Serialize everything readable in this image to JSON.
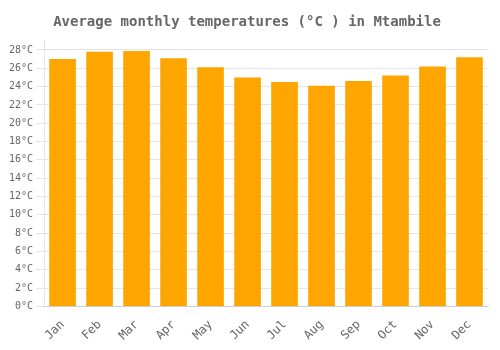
{
  "chart_data": {
    "type": "bar",
    "title": "Average monthly temperatures (°C ) in Mtambile",
    "categories": [
      "Jan",
      "Feb",
      "Mar",
      "Apr",
      "May",
      "Jun",
      "Jul",
      "Aug",
      "Sep",
      "Oct",
      "Nov",
      "Dec"
    ],
    "values": [
      27.0,
      27.8,
      27.9,
      27.1,
      26.1,
      25.0,
      24.5,
      24.1,
      24.6,
      25.2,
      26.2,
      27.2
    ],
    "color": "#FFA500",
    "ylim": [
      0,
      29
    ],
    "yticks": [
      {
        "value": 0,
        "label": "0°C"
      },
      {
        "value": 2,
        "label": "2°C"
      },
      {
        "value": 4,
        "label": "4°C"
      },
      {
        "value": 6,
        "label": "6°C"
      },
      {
        "value": 8,
        "label": "8°C"
      },
      {
        "value": 10,
        "label": "10°C"
      },
      {
        "value": 12,
        "label": "12°C"
      },
      {
        "value": 14,
        "label": "14°C"
      },
      {
        "value": 16,
        "label": "16°C"
      },
      {
        "value": 18,
        "label": "18°C"
      },
      {
        "value": 20,
        "label": "20°C"
      },
      {
        "value": 22,
        "label": "22°C"
      },
      {
        "value": 24,
        "label": "24°C"
      },
      {
        "value": 26,
        "label": "26°C"
      },
      {
        "value": 28,
        "label": "28°C"
      }
    ],
    "grid": true
  }
}
